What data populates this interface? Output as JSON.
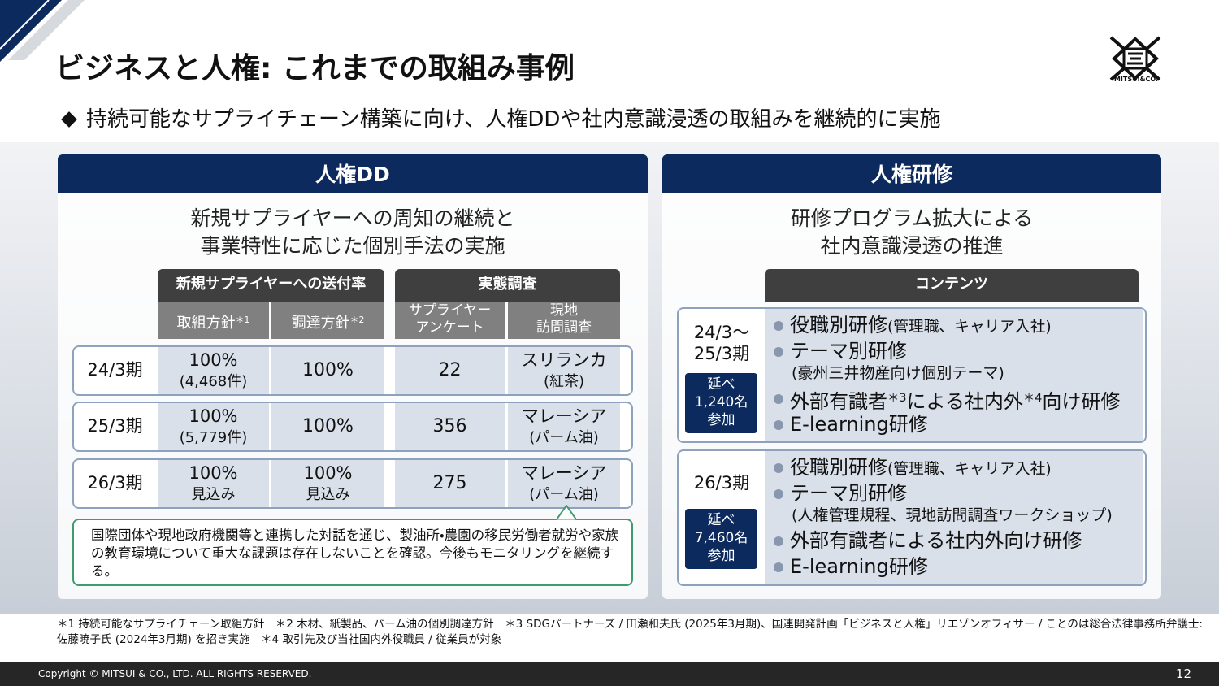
{
  "header": {
    "title": "ビジネスと人権: これまでの取組み事例",
    "logo": "MITSUI&CO."
  },
  "lead": "持続可能なサプライチェーン構築に向け、人権DDや社内意識浸透の取組みを継続的に実施",
  "left_panel": {
    "title": "人権DD",
    "subtitle": [
      "新規サプライヤーへの周知の継続と",
      "事業特性に応じた個別手法の実施"
    ],
    "groups": [
      "新規サプライヤーへの送付率",
      "実態調査"
    ],
    "columns": [
      {
        "lines": [
          "取組方針"
        ],
        "note": "＊1"
      },
      {
        "lines": [
          "調達方針"
        ],
        "note": "＊2"
      },
      {
        "lines": [
          "サプライヤー",
          "アンケート"
        ]
      },
      {
        "lines": [
          "現地",
          "訪問調査"
        ]
      }
    ],
    "rows": [
      {
        "period": "24/3期",
        "cells": [
          [
            "100%",
            "(4,468件)"
          ],
          [
            "100%"
          ],
          [
            "22"
          ],
          [
            "スリランカ",
            "(紅茶)"
          ]
        ]
      },
      {
        "period": "25/3期",
        "cells": [
          [
            "100%",
            "(5,779件)"
          ],
          [
            "100%"
          ],
          [
            "356"
          ],
          [
            "マレーシア",
            "(パーム油)"
          ]
        ]
      },
      {
        "period": "26/3期",
        "cells": [
          [
            "100%",
            "見込み"
          ],
          [
            "100%",
            "見込み"
          ],
          [
            "275"
          ],
          [
            "マレーシア",
            "(パーム油)"
          ]
        ]
      }
    ],
    "note": "国際団体や現地政府機関等と連携した対話を通じ、製油所・農園の移民労働者就労や家族の教育環境について重大な課題は存在しないことを確認。今後もモニタリングを継続する。"
  },
  "right_panel": {
    "title": "人権研修",
    "subtitle": [
      "研修プログラム拡大による",
      "社内意識浸透の推進"
    ],
    "contents_header": "コンテンツ",
    "blocks": [
      {
        "period": [
          "24/3～",
          "25/3期"
        ],
        "participants": [
          "延べ",
          "1,240名",
          "参加"
        ],
        "items": [
          {
            "text": "役職別研修",
            "note": "(管理職、キャリア入社)"
          },
          {
            "text": "テーマ別研修",
            "detail": "(豪州三井物産向け個別テーマ)"
          },
          {
            "parts": [
              "外部有識者",
              "＊3",
              "による社内外",
              "＊4",
              "向け研修"
            ]
          },
          {
            "text": "E-learning研修"
          }
        ]
      },
      {
        "period": [
          "26/3期"
        ],
        "participants": [
          "延べ",
          "7,460名",
          "参加"
        ],
        "items": [
          {
            "text": "役職別研修",
            "note": "(管理職、キャリア入社)"
          },
          {
            "text": "テーマ別研修",
            "detail": "(人権管理規程、現地訪問調査ワークショップ)"
          },
          {
            "text": "外部有識者による社内外向け研修"
          },
          {
            "text": "E-learning研修"
          }
        ]
      }
    ]
  },
  "footnotes": [
    "＊1 持続可能なサプライチェーン取組方針　＊2 木材、紙製品、パーム油の個別調達方針　＊3 SDGパートナーズ / 田瀬和夫氏 (2025年3月期)、国連開発計画「ビジネスと人権」リエゾンオフィサー / ことのは総合法律事務所弁護士:",
    "佐藤暁子氏 (2024年3月期) を招き実施　＊4 取引先及び当社国内外役職員 / 従業員が対象"
  ],
  "footer": {
    "copyright": "Copyright © MITSUI & CO., LTD. ALL RIGHTS RESERVED.",
    "page": 12
  }
}
